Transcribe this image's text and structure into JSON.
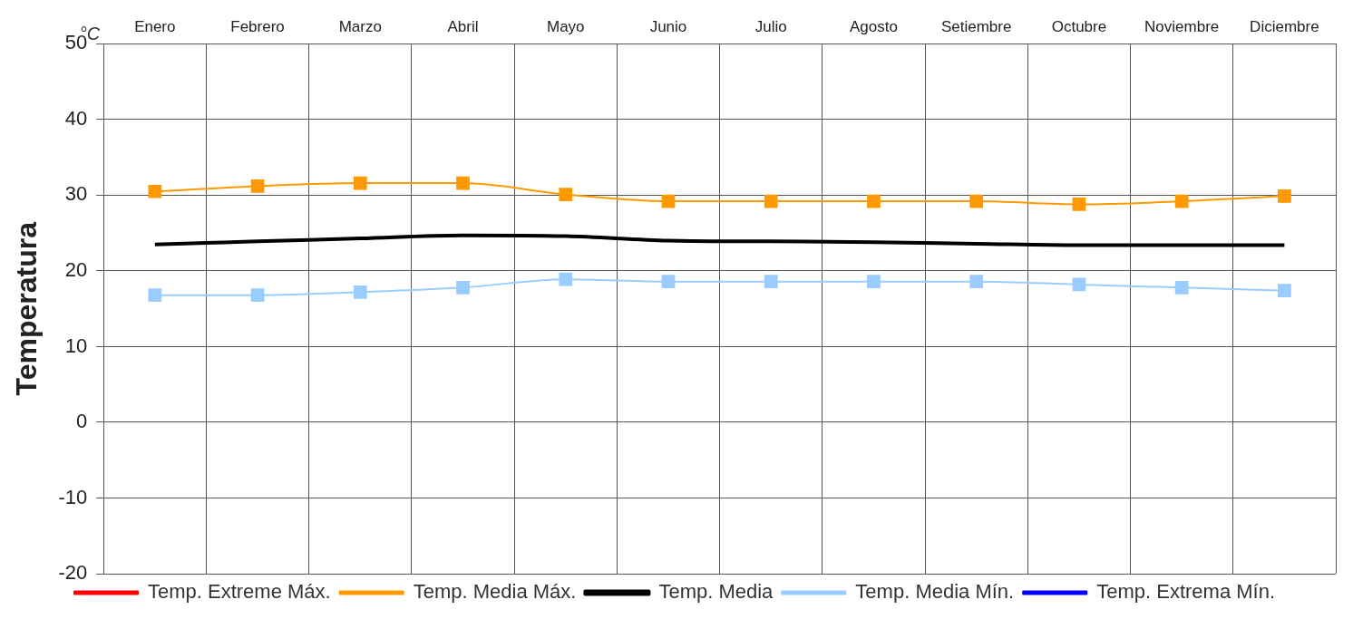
{
  "chart_data": {
    "type": "line",
    "ylabel": "Temperatura",
    "annotations": [
      "°C"
    ],
    "categories": [
      "Enero",
      "Febrero",
      "Marzo",
      "Abril",
      "Mayo",
      "Junio",
      "Julio",
      "Agosto",
      "Setiembre",
      "Octubre",
      "Noviembre",
      "Diciembre"
    ],
    "ylim": [
      -20,
      50
    ],
    "yticks": [
      -20,
      -10,
      0,
      10,
      20,
      30,
      40,
      50
    ],
    "grid": true,
    "legend": "bottom",
    "series": [
      {
        "name": "Temp. Extreme Máx.",
        "color": "#ff0000",
        "marker": "triangle",
        "values": [
          null,
          null,
          null,
          null,
          null,
          null,
          null,
          null,
          null,
          null,
          null,
          null
        ]
      },
      {
        "name": "Temp. Media Máx.",
        "color": "#ff9900",
        "marker": "square",
        "values": [
          30.5,
          31.2,
          31.6,
          31.6,
          30.1,
          29.2,
          29.2,
          29.2,
          29.2,
          28.8,
          29.2,
          29.9
        ]
      },
      {
        "name": "Temp. Media",
        "color": "#000000",
        "marker": "none",
        "values": [
          23.5,
          23.9,
          24.3,
          24.7,
          24.6,
          24.0,
          23.9,
          23.8,
          23.6,
          23.4,
          23.4,
          23.4
        ]
      },
      {
        "name": "Temp. Media Mín.",
        "color": "#99ccff",
        "marker": "square",
        "values": [
          16.8,
          16.8,
          17.2,
          17.8,
          18.9,
          18.6,
          18.6,
          18.6,
          18.6,
          18.2,
          17.8,
          17.4
        ]
      },
      {
        "name": "Temp. Extrema Mín.",
        "color": "#0000ff",
        "marker": "triangle",
        "values": [
          null,
          null,
          null,
          null,
          null,
          null,
          null,
          null,
          null,
          null,
          null,
          null
        ]
      }
    ]
  }
}
